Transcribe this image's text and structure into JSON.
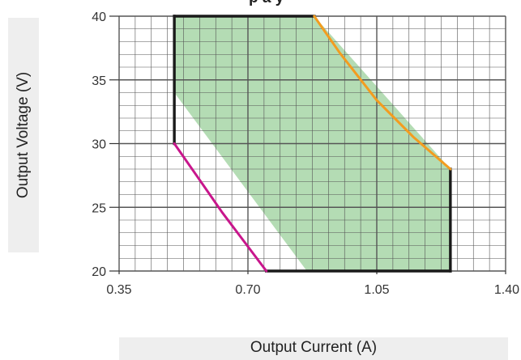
{
  "chart_data": {
    "type": "area",
    "title": "",
    "title_fragment": "p a y",
    "xlabel": "Output Current (A)",
    "ylabel": "Output Voltage (V)",
    "xlim": [
      0.35,
      1.4
    ],
    "ylim": [
      20,
      40
    ],
    "x_ticks": [
      "0.35",
      "0.70",
      "1.05",
      "1.40"
    ],
    "y_ticks": [
      "20",
      "25",
      "30",
      "35",
      "40"
    ],
    "grid": true,
    "regions": [
      {
        "kind": "operating-boundary",
        "color": "#1a1a1a",
        "points": [
          [
            0.5,
            30
          ],
          [
            0.5,
            40
          ],
          [
            0.88,
            40
          ],
          [
            0.88,
            40
          ],
          [
            1.25,
            28
          ],
          [
            1.25,
            20
          ],
          [
            0.75,
            20
          ],
          [
            0.75,
            20
          ]
        ]
      },
      {
        "kind": "shaded-area",
        "color": "#b4dcb4",
        "points": [
          [
            0.5,
            34
          ],
          [
            0.5,
            40
          ],
          [
            0.88,
            40
          ],
          [
            1.25,
            28
          ],
          [
            1.25,
            20
          ],
          [
            0.86,
            20
          ]
        ]
      }
    ],
    "curves": [
      {
        "color": "#f39c1f",
        "points": [
          [
            0.88,
            40
          ],
          [
            0.95,
            37.1
          ],
          [
            1.05,
            33.4
          ],
          [
            1.15,
            30.5
          ],
          [
            1.25,
            28
          ]
        ]
      },
      {
        "color": "#c8168c",
        "points": [
          [
            0.5,
            30
          ],
          [
            0.57,
            27.1
          ],
          [
            0.63,
            24.6
          ],
          [
            0.69,
            22.3
          ],
          [
            0.75,
            20
          ]
        ]
      }
    ]
  }
}
